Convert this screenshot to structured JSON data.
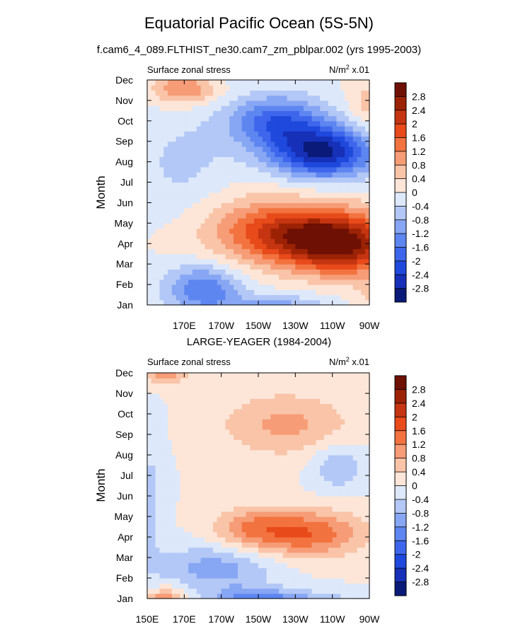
{
  "figure": {
    "title": "Equatorial Pacific Ocean (5S-5N)",
    "subtitle": "f.cam6_4_089.FLTHIST_ne30.cam7_zm_pblpar.002 (yrs 1995-2003)"
  },
  "chart_data": [
    {
      "type": "heatmap",
      "title": "",
      "left_label": "Surface zonal stress",
      "units_label": "N/m",
      "units_sup": "2",
      "units_suffix": " x.01",
      "ylabel": "Month",
      "xlabel": "",
      "x_ticks": [
        "170E",
        "170W",
        "150W",
        "130W",
        "110W",
        "90W"
      ],
      "y_ticks": [
        "Jan",
        "Feb",
        "Mar",
        "Apr",
        "May",
        "Jun",
        "Jul",
        "Aug",
        "Sep",
        "Oct",
        "Nov",
        "Dec"
      ],
      "colorbar_ticks": [
        "2.8",
        "2.4",
        "2",
        "1.6",
        "1.2",
        "0.8",
        "0.4",
        "0",
        "-0.4",
        "-0.8",
        "-1.2",
        "-1.6",
        "-2",
        "-2.4",
        "-2.8"
      ],
      "features": [
        {
          "lon": 240,
          "month": 3.4,
          "value": 2.6,
          "slon": 30,
          "smon": 1.0,
          "angle": -0.35
        },
        {
          "lon": 255,
          "month": 2.6,
          "value": 1.4,
          "slon": 18,
          "smon": 0.9,
          "angle": -0.35
        },
        {
          "lon": 205,
          "month": 4.2,
          "value": 0.5,
          "slon": 25,
          "smon": 1.3,
          "angle": 0
        },
        {
          "lon": 245,
          "month": 7.5,
          "value": -2.8,
          "slon": 20,
          "smon": 0.9,
          "angle": -0.3
        },
        {
          "lon": 220,
          "month": 9.0,
          "value": -1.8,
          "slon": 18,
          "smon": 0.9,
          "angle": -0.3
        },
        {
          "lon": 180,
          "month": 0.8,
          "value": -1.6,
          "slon": 14,
          "smon": 0.8,
          "angle": 0
        },
        {
          "lon": 170,
          "month": 10.6,
          "value": 1.3,
          "slon": 12,
          "smon": 0.55,
          "angle": 0
        },
        {
          "lon": 220,
          "month": 11.9,
          "value": -1.0,
          "slon": 20,
          "smon": 0.45,
          "angle": 0
        },
        {
          "lon": 270,
          "month": 9.7,
          "value": 0.6,
          "slon": 8,
          "smon": 1.0,
          "angle": 0
        },
        {
          "lon": 170,
          "month": 6.8,
          "value": -0.5,
          "slon": 20,
          "smon": 2.0,
          "angle": 0
        },
        {
          "lon": 275,
          "month": 0.6,
          "value": 0.6,
          "slon": 8,
          "smon": 0.8,
          "angle": 0
        }
      ]
    },
    {
      "type": "heatmap",
      "title": "LARGE-YEAGER (1984-2004)",
      "left_label": "Surface zonal stress",
      "units_label": "N/m",
      "units_sup": "2",
      "units_suffix": " x.01",
      "ylabel": "Month",
      "xlabel": "",
      "x_ticks": [
        "150E",
        "170E",
        "170W",
        "150W",
        "130W",
        "110W",
        "90W"
      ],
      "y_ticks": [
        "Jan",
        "Feb",
        "Mar",
        "Apr",
        "May",
        "Jun",
        "Jul",
        "Aug",
        "Sep",
        "Oct",
        "Nov",
        "Dec"
      ],
      "colorbar_ticks": [
        "2.8",
        "2.4",
        "2",
        "1.6",
        "1.2",
        "0.8",
        "0.4",
        "0",
        "-0.4",
        "-0.8",
        "-1.2",
        "-1.6",
        "-2",
        "-2.4",
        "-2.8"
      ],
      "features": [
        {
          "lon": 235,
          "month": 3.2,
          "value": 1.6,
          "slon": 22,
          "smon": 0.8,
          "angle": 0
        },
        {
          "lon": 205,
          "month": 3.5,
          "value": 0.8,
          "slon": 14,
          "smon": 0.7,
          "angle": 0
        },
        {
          "lon": 160,
          "month": 11.5,
          "value": 1.9,
          "slon": 8,
          "smon": 0.6,
          "angle": 0
        },
        {
          "lon": 225,
          "month": 8.5,
          "value": 0.9,
          "slon": 25,
          "smon": 1.1,
          "angle": 0
        },
        {
          "lon": 187,
          "month": 1.5,
          "value": -1.0,
          "slon": 22,
          "smon": 0.8,
          "angle": 0
        },
        {
          "lon": 230,
          "month": 11.9,
          "value": -0.9,
          "slon": 22,
          "smon": 0.35,
          "angle": 0
        },
        {
          "lon": 253,
          "month": 6.5,
          "value": -0.8,
          "slon": 10,
          "smon": 0.8,
          "angle": 0
        },
        {
          "lon": 205,
          "month": 0.05,
          "value": -0.9,
          "slon": 15,
          "smon": 0.4,
          "angle": 0
        },
        {
          "lon": 152,
          "month": 5.0,
          "value": -0.5,
          "slon": 5,
          "smon": 2.5,
          "angle": 0
        }
      ]
    }
  ]
}
